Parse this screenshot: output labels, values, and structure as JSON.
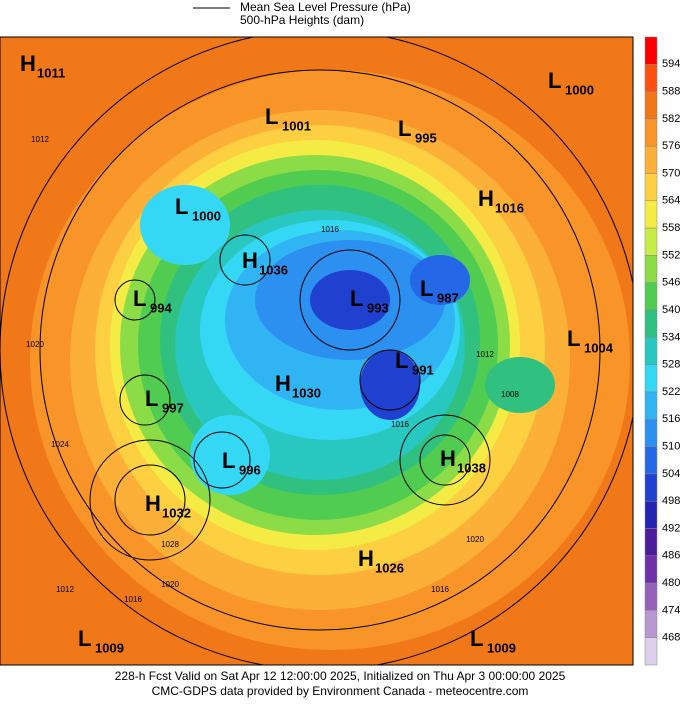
{
  "legend": {
    "lines": [
      "Mean Sea Level Pressure (hPa)",
      "500-hPa Heights (dam)"
    ]
  },
  "colorbar": {
    "labels": [
      594,
      588,
      582,
      576,
      570,
      564,
      558,
      552,
      546,
      540,
      534,
      528,
      522,
      516,
      510,
      504,
      498,
      492,
      486,
      480,
      474,
      468
    ],
    "colors": [
      "#ff0000",
      "#ff5010",
      "#f07818",
      "#f89428",
      "#fcb038",
      "#fcd040",
      "#f4ec44",
      "#c8ec48",
      "#8cdc48",
      "#50cc50",
      "#30c080",
      "#28c8c0",
      "#34d8f4",
      "#30b4f4",
      "#2c90f0",
      "#2468e8",
      "#2040d0",
      "#2424b0",
      "#4c1c9c",
      "#7030a8",
      "#9460b8",
      "#b898d0",
      "#dcd0ec"
    ]
  },
  "systems": [
    {
      "letter": "H",
      "value": "1011"
    },
    {
      "letter": "L",
      "value": "1000"
    },
    {
      "letter": "L",
      "value": "1001"
    },
    {
      "letter": "L",
      "value": "995"
    },
    {
      "letter": "H",
      "value": "1016"
    },
    {
      "letter": "L",
      "value": "1000"
    },
    {
      "letter": "H",
      "value": "1036"
    },
    {
      "letter": "L",
      "value": "994"
    },
    {
      "letter": "L",
      "value": "993"
    },
    {
      "letter": "L",
      "value": "987"
    },
    {
      "letter": "L",
      "value": "1004"
    },
    {
      "letter": "L",
      "value": "991"
    },
    {
      "letter": "H",
      "value": "1030"
    },
    {
      "letter": "L",
      "value": "997"
    },
    {
      "letter": "L",
      "value": "996"
    },
    {
      "letter": "H",
      "value": "1038"
    },
    {
      "letter": "H",
      "value": "1032"
    },
    {
      "letter": "H",
      "value": "1026"
    },
    {
      "letter": "L",
      "value": "1009"
    },
    {
      "letter": "L",
      "value": "1009"
    }
  ],
  "isobar_labels": [
    "1012",
    "1020",
    "1024",
    "1028",
    "1020",
    "1016",
    "1012",
    "1016",
    "1012",
    "1008",
    "1016",
    "1020",
    "1016"
  ],
  "footer": [
    "228-h Fcst Valid on Sat Apr 12 12:00:00 2025, Initialized on Thu Apr  3 00:00:00 2025",
    "CMC-GDPS data provided by Environment Canada - meteocentre.com"
  ]
}
